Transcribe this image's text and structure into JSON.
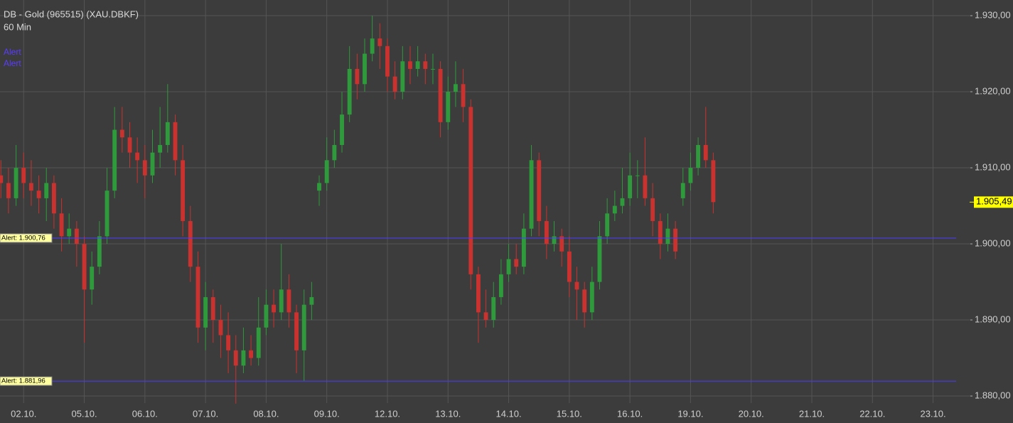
{
  "chart_data": {
    "type": "candlestick",
    "title": "DB - Gold (965515) (XAU.DBKF)",
    "subtitle": "60 Min",
    "legend": [
      "Alert",
      "Alert"
    ],
    "up_color": "#2f9a3c",
    "down_color": "#c9322e",
    "alert_color": "#4a3cff",
    "grid": true,
    "xlim": [
      -0.39,
      15.65
    ],
    "xticks": [
      {
        "value": 0,
        "label": "02.10."
      },
      {
        "value": 1,
        "label": "05.10."
      },
      {
        "value": 2,
        "label": "06.10."
      },
      {
        "value": 3,
        "label": "07.10."
      },
      {
        "value": 4,
        "label": "08.10."
      },
      {
        "value": 5,
        "label": "09.10."
      },
      {
        "value": 6,
        "label": "12.10."
      },
      {
        "value": 7,
        "label": "13.10."
      },
      {
        "value": 8,
        "label": "14.10."
      },
      {
        "value": 9,
        "label": "15.10."
      },
      {
        "value": 10,
        "label": "16.10."
      },
      {
        "value": 11,
        "label": "19.10."
      },
      {
        "value": 12,
        "label": "20.10."
      },
      {
        "value": 13,
        "label": "21.10."
      },
      {
        "value": 14,
        "label": "22.10."
      },
      {
        "value": 15,
        "label": "23.10."
      }
    ],
    "ylim": [
      1879.07,
      1932.06
    ],
    "yticks": [
      {
        "value": 1880,
        "label": "1.880,00"
      },
      {
        "value": 1890,
        "label": "1.890,00"
      },
      {
        "value": 1900,
        "label": "1.900,00"
      },
      {
        "value": 1910,
        "label": "1.910,00"
      },
      {
        "value": 1920,
        "label": "1.920,00"
      },
      {
        "value": 1930,
        "label": "1.930,00"
      }
    ],
    "alerts": [
      {
        "value": 1900.76,
        "label": "Alert: 1.900,76"
      },
      {
        "value": 1881.96,
        "label": "Alert: 1.881,96"
      }
    ],
    "last_price": {
      "value": 1905.49,
      "label": "1.905,49"
    },
    "x": [
      -0.375,
      -0.25,
      -0.125,
      0,
      0.125,
      0.25,
      0.375,
      0.5,
      0.625,
      0.75,
      0.875,
      1,
      1.125,
      1.25,
      1.375,
      1.5,
      1.625,
      1.75,
      1.875,
      2,
      2.125,
      2.25,
      2.375,
      2.5,
      2.625,
      2.75,
      2.875,
      3,
      3.125,
      3.25,
      3.375,
      3.5,
      3.625,
      3.75,
      3.875,
      4,
      4.125,
      4.25,
      4.375,
      4.5,
      4.625,
      4.75,
      4.875,
      5,
      5.125,
      5.25,
      5.375,
      5.5,
      5.625,
      5.75,
      5.875,
      6,
      6.125,
      6.25,
      6.375,
      6.5,
      6.625,
      6.75,
      6.875,
      7,
      7.125,
      7.25,
      7.375,
      7.5,
      7.625,
      7.75,
      7.875,
      8,
      8.125,
      8.25,
      8.375,
      8.5,
      8.625,
      8.75,
      8.875,
      9,
      9.125,
      9.25,
      9.375,
      9.5,
      9.625,
      9.75,
      9.875,
      10,
      10.125,
      10.25,
      10.375,
      10.5,
      10.625,
      10.75,
      10.875,
      11,
      11.125,
      11.25,
      11.375
    ],
    "open": [
      1909,
      1908,
      1906,
      1910,
      1908,
      1907,
      1906,
      1908,
      1904,
      1901,
      1902,
      1900,
      1894,
      1897,
      1901,
      1907,
      1915,
      1914,
      1912,
      1911,
      1909,
      1912,
      1913,
      1916,
      1911,
      1903,
      1897,
      1889,
      1893,
      1890,
      1888,
      1886,
      1884,
      1886,
      1885,
      1889,
      1892,
      1891,
      1894,
      1891,
      1886,
      1892,
      1907,
      1908,
      1911,
      1913,
      1917,
      1923,
      1921,
      1925,
      1927,
      1926,
      1922,
      1920,
      1924,
      1923,
      1924,
      1923,
      1923,
      1916,
      1920,
      1921,
      1918,
      1896,
      1891,
      1890,
      1893,
      1896,
      1898,
      1897,
      1902,
      1911,
      1903,
      1900,
      1901,
      1899,
      1895,
      1894,
      1891,
      1895,
      1901,
      1904,
      1905,
      1906,
      1909,
      1909,
      1906,
      1903,
      1900,
      1902,
      1906,
      1908,
      1910,
      1913,
      1911
    ],
    "high": [
      1911,
      1910,
      1913,
      1912,
      1911,
      1909,
      1910,
      1909,
      1906,
      1904,
      1903,
      1901,
      1899,
      1903,
      1910,
      1918,
      1918,
      1916,
      1914,
      1913,
      1915,
      1918,
      1921,
      1917,
      1913,
      1905,
      1899,
      1895,
      1894,
      1892,
      1891,
      1888,
      1889,
      1888,
      1893,
      1894,
      1894,
      1900,
      1896,
      1892,
      1894,
      1895,
      1909,
      1914,
      1915,
      1920,
      1926,
      1925,
      1927,
      1930,
      1929,
      1927,
      1924,
      1926,
      1926,
      1926,
      1925,
      1925,
      1924,
      1922,
      1924,
      1923,
      1919,
      1897,
      1894,
      1895,
      1898,
      1900,
      1900,
      1904,
      1913,
      1912,
      1905,
      1903,
      1902,
      1901,
      1897,
      1895,
      1897,
      1903,
      1906,
      1907,
      1910,
      1912,
      1911,
      1914,
      1908,
      1904,
      1904,
      1903,
      1910,
      1912,
      1914,
      1918,
      1912
    ],
    "low": [
      1906,
      1904,
      1905,
      1906,
      1905,
      1904,
      1903,
      1902,
      1899,
      1900,
      1897,
      1887,
      1892,
      1896,
      1900,
      1906,
      1912,
      1910,
      1908,
      1906,
      1908,
      1910,
      1912,
      1909,
      1901,
      1895,
      1887,
      1886,
      1887,
      1885,
      1883,
      1879,
      1883,
      1884,
      1884,
      1888,
      1889,
      1890,
      1889,
      1883,
      1882,
      1890,
      1905,
      1907,
      1910,
      1912,
      1916,
      1919,
      1920,
      1924,
      1923,
      1920,
      1919,
      1919,
      1921,
      1922,
      1921,
      1921,
      1914,
      1915,
      1918,
      1916,
      1894,
      1887,
      1889,
      1889,
      1892,
      1895,
      1896,
      1896,
      1901,
      1901,
      1898,
      1899,
      1897,
      1893,
      1890,
      1889,
      1890,
      1894,
      1900,
      1903,
      1904,
      1905,
      1906,
      1905,
      1901,
      1898,
      1899,
      1898,
      1905,
      1907,
      1909,
      1910,
      1904
    ],
    "close": [
      1908,
      1906,
      1910,
      1908,
      1907,
      1906,
      1908,
      1904,
      1901,
      1902,
      1900,
      1894,
      1897,
      1901,
      1907,
      1915,
      1914,
      1912,
      1911,
      1909,
      1912,
      1913,
      1916,
      1911,
      1903,
      1897,
      1889,
      1893,
      1890,
      1888,
      1886,
      1884,
      1886,
      1885,
      1889,
      1892,
      1891,
      1894,
      1891,
      1886,
      1892,
      1893,
      1908,
      1911,
      1913,
      1917,
      1923,
      1921,
      1925,
      1927,
      1926,
      1922,
      1920,
      1924,
      1923,
      1924,
      1923,
      1923,
      1916,
      1920,
      1921,
      1918,
      1896,
      1891,
      1890,
      1893,
      1896,
      1898,
      1897,
      1902,
      1911,
      1903,
      1900,
      1901,
      1899,
      1895,
      1894,
      1891,
      1895,
      1901,
      1904,
      1905,
      1906,
      1909,
      1909,
      1906,
      1903,
      1900,
      1902,
      1899,
      1908,
      1910,
      1913,
      1911,
      1905.49
    ]
  }
}
